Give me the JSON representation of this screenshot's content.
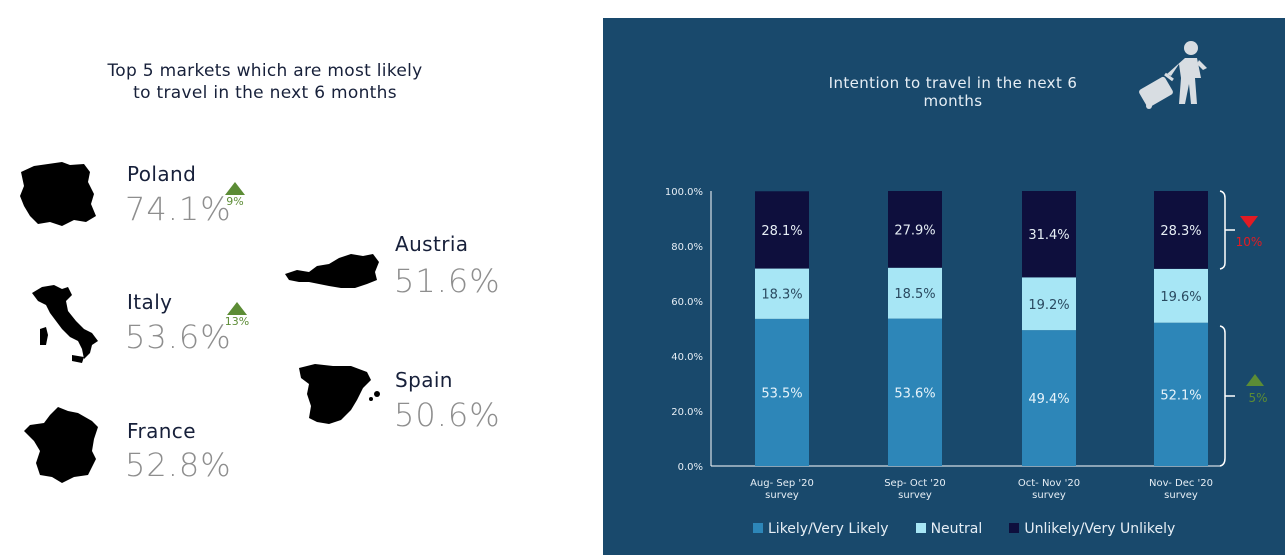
{
  "left": {
    "title_line1": "Top 5 markets which are most likely",
    "title_line2": "to travel in the next 6 months",
    "markets": [
      {
        "name": "Poland",
        "value": "74.1%",
        "delta": "9%",
        "trend": "up"
      },
      {
        "name": "Italy",
        "value": "53.6%",
        "delta": "13%",
        "trend": "up"
      },
      {
        "name": "France",
        "value": "52.8%"
      },
      {
        "name": "Austria",
        "value": "51.6%"
      },
      {
        "name": "Spain",
        "value": "50.6%"
      }
    ]
  },
  "right": {
    "title": "Intention to travel in the next 6 months",
    "icon": "traveler-with-suitcase-icon",
    "bracket_top_label": "10%",
    "bracket_bottom_label": "5%"
  },
  "colors": {
    "panel_bg": "#19496c",
    "likely": "#2d86b8",
    "neutral": "#a7e6f5",
    "unlikely": "#0e0f3d",
    "up": "#5c8c35",
    "down": "#e31b23"
  },
  "chart_data": {
    "type": "bar",
    "stacked": true,
    "categories": [
      "Aug- Sep '20 survey",
      "Sep- Oct '20 survey",
      "Oct- Nov '20 survey",
      "Nov- Dec '20 survey"
    ],
    "category_lines": [
      [
        "Aug- Sep '20",
        "survey"
      ],
      [
        "Sep- Oct '20",
        "survey"
      ],
      [
        "Oct- Nov '20",
        "survey"
      ],
      [
        "Nov- Dec '20",
        "survey"
      ]
    ],
    "series": [
      {
        "name": "Likely/Very Likely",
        "values": [
          53.5,
          53.6,
          49.4,
          52.1
        ],
        "labels": [
          "53.5%",
          "53.6%",
          "49.4%",
          "52.1%"
        ]
      },
      {
        "name": "Neutral",
        "values": [
          18.3,
          18.5,
          19.2,
          19.6
        ],
        "labels": [
          "18.3%",
          "18.5%",
          "19.2%",
          "19.6%"
        ]
      },
      {
        "name": "Unlikely/Very Unlikely",
        "values": [
          28.1,
          27.9,
          31.4,
          28.3
        ],
        "labels": [
          "28.1%",
          "27.9%",
          "31.4%",
          "28.3%"
        ]
      }
    ],
    "yticks": [
      0,
      20,
      40,
      60,
      80,
      100
    ],
    "ytick_labels": [
      "0.0%",
      "20.0%",
      "40.0%",
      "60.0%",
      "80.0%",
      "100.0%"
    ],
    "ylim": [
      0,
      100
    ],
    "legend": "bottom",
    "grid": false
  }
}
